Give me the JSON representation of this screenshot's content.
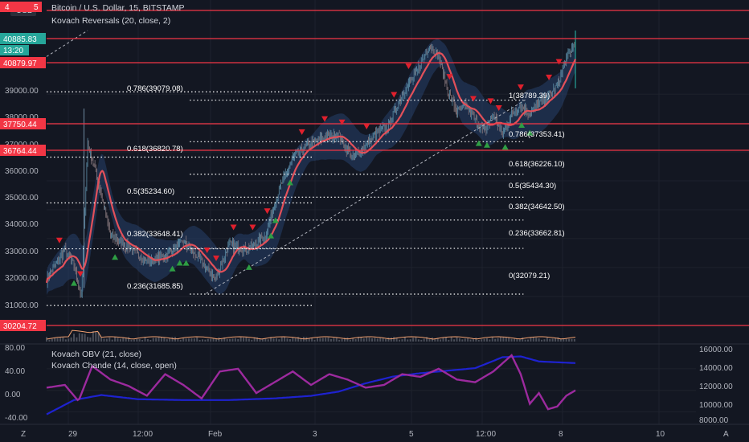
{
  "header": {
    "currency_button": "USD",
    "symbol_title": "Bitcoin / U.S. Dollar, 15, BITSTAMP",
    "indicator_main": "Kovach Reversals (20, close, 2)",
    "indicator_obv": "Kovach OBV (21, close)",
    "indicator_chande": "Kovach Chande (14, close, open)",
    "top_left_tag": "4",
    "top_left_tag_suffix": "5"
  },
  "price_axis": {
    "ticks": [
      "39000.00",
      "38000.00",
      "37000.00",
      "36000.00",
      "35000.00",
      "34000.00",
      "33000.00",
      "32000.00",
      "31000.00"
    ],
    "tag_last": "40885.83",
    "tag_countdown": "13:20",
    "tag_level_2": "40879.97",
    "tag_level_3": "37750.44",
    "tag_level_4": "36764.44",
    "tag_level_5": "30204.72"
  },
  "osc_axis_left": [
    "80.00",
    "40.00",
    "0.00",
    "-40.00"
  ],
  "osc_axis_right": [
    "16000.00",
    "14000.00",
    "12000.00",
    "10000.00",
    "8000.00"
  ],
  "time_axis": [
    "29",
    "12:00",
    "Feb",
    "3",
    "5",
    "12:00",
    "8",
    "10"
  ],
  "bottom_icons": {
    "left": "Z",
    "right": "A"
  },
  "fib_left": [
    "0.786(39079.08)",
    "0.618(36820.78)",
    "0.5(35234.60)",
    "0.382(33648.41)",
    "0.236(31685.85)"
  ],
  "fib_right": [
    "1(38789.39)",
    "0.786(37353.41)",
    "0.618(36226.10)",
    "0.5(35434.30)",
    "0.382(34642.50)",
    "0.236(33662.81)",
    "0(32079.21)"
  ],
  "colors": {
    "background": "#131722",
    "level_line": "#f23645",
    "ma_line": "#e2505a",
    "band_fill": "#2a4a7a",
    "obv_line": "#1e22d0",
    "chande_line": "#9c2a9e",
    "buy_marker": "#2e9e44",
    "sell_marker": "#e0202d",
    "last_price_tag": "#26a69a"
  },
  "chart_data": {
    "type": "candlestick",
    "title": "Bitcoin / U.S. Dollar, 15, BITSTAMP",
    "price_ylim": [
      30800,
      41200
    ],
    "x_range_bars": [
      0,
      580
    ],
    "horizontal_levels": [
      40885.83,
      40879.97,
      37750.44,
      36764.44,
      30204.72
    ],
    "fib_left_levels": [
      39079.08,
      36820.78,
      35234.6,
      33648.41,
      31685.85
    ],
    "fib_right_levels": [
      38789.39,
      37353.41,
      36226.1,
      35434.3,
      34642.5,
      33662.81,
      32079.21
    ],
    "price_path_bars": [
      0,
      20,
      30,
      38,
      45,
      55,
      70,
      90,
      110,
      130,
      150,
      170,
      185,
      200,
      220,
      240,
      255,
      270,
      290,
      305,
      320,
      335,
      350,
      360,
      375,
      390,
      405,
      420,
      430,
      440,
      450,
      460,
      470,
      480,
      490,
      500,
      510,
      520,
      530,
      540,
      550,
      560,
      570,
      580
    ],
    "price_path": [
      32600,
      33600,
      33100,
      32000,
      37300,
      36200,
      34100,
      33700,
      33200,
      33400,
      33900,
      33200,
      32600,
      33800,
      33600,
      34100,
      35700,
      36800,
      37300,
      37500,
      37600,
      36800,
      37200,
      37600,
      37900,
      39000,
      39700,
      40700,
      40300,
      39100,
      38400,
      38600,
      38100,
      37700,
      38300,
      37600,
      38300,
      38600,
      38300,
      38700,
      38900,
      39300,
      40200,
      40800
    ],
    "osc_ylim_left": [
      -60,
      80
    ],
    "osc_ylim_right": [
      7500,
      16500
    ],
    "obv_bars": [
      0,
      30,
      60,
      100,
      150,
      200,
      250,
      290,
      320,
      350,
      380,
      410,
      440,
      470,
      500,
      520,
      540,
      560,
      580
    ],
    "obv": [
      8500,
      10200,
      10800,
      10300,
      10200,
      10200,
      10400,
      10700,
      11200,
      12200,
      13000,
      13400,
      13700,
      14000,
      15300,
      15400,
      14800,
      14700,
      14600
    ],
    "chande_bars": [
      0,
      20,
      35,
      50,
      70,
      90,
      110,
      130,
      150,
      170,
      190,
      210,
      230,
      250,
      270,
      290,
      310,
      330,
      350,
      370,
      390,
      410,
      430,
      450,
      470,
      490,
      510,
      520,
      530,
      540,
      550,
      560,
      570,
      580
    ],
    "chande": [
      5,
      10,
      -20,
      45,
      20,
      8,
      -10,
      30,
      10,
      -15,
      35,
      40,
      -5,
      15,
      35,
      10,
      30,
      20,
      5,
      10,
      30,
      25,
      40,
      20,
      15,
      35,
      65,
      30,
      -25,
      -5,
      -35,
      -30,
      -10,
      0
    ],
    "buy_marker_bars": [
      30,
      75,
      138,
      146,
      153,
      222,
      246,
      251,
      267,
      474,
      483,
      503,
      521,
      530
    ],
    "sell_marker_bars": [
      14,
      37,
      176,
      186,
      205,
      226,
      242,
      280,
      305,
      324,
      351,
      381,
      397,
      442,
      468,
      487,
      496,
      520,
      551,
      562
    ]
  }
}
